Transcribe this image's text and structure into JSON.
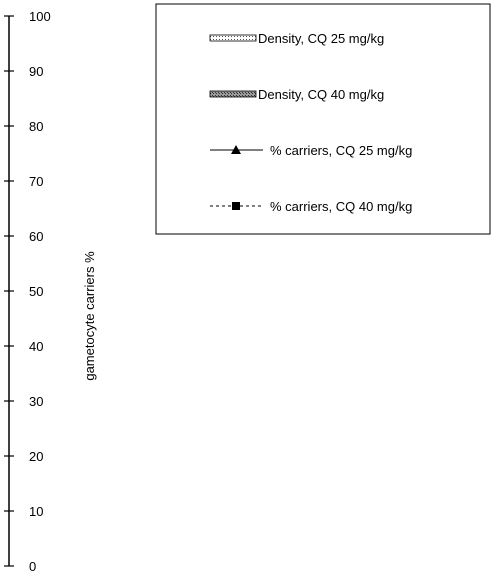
{
  "chart_data": {
    "type": "bar",
    "title": "",
    "y_axis": {
      "label": "gametocyte carriers %",
      "ylim": [
        0,
        100
      ],
      "ticks": [
        0,
        10,
        20,
        30,
        40,
        50,
        60,
        70,
        80,
        90,
        100
      ],
      "tick_labels": [
        "0",
        "10",
        "20",
        "30",
        "40",
        "50",
        "60",
        "70",
        "80",
        "90",
        "100"
      ]
    },
    "legend": {
      "placement": "top-right",
      "entries": [
        {
          "label": "Density, CQ 25 mg/kg",
          "kind": "bar",
          "pattern": "dotted"
        },
        {
          "label": "Density, CQ 40 mg/kg",
          "kind": "bar",
          "pattern": "crosshatch"
        },
        {
          "label": "% carriers, CQ 25 mg/kg",
          "kind": "line",
          "marker": "triangle",
          "dash": "solid"
        },
        {
          "label": "% carriers, CQ 40 mg/kg",
          "kind": "line",
          "marker": "square",
          "dash": "dashed"
        }
      ]
    },
    "series": []
  }
}
